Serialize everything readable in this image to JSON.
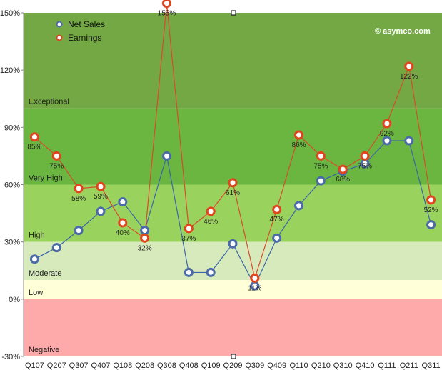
{
  "watermark": "© asymco.com",
  "chart_data": {
    "type": "line",
    "categories": [
      "Q107",
      "Q207",
      "Q307",
      "Q407",
      "Q108",
      "Q208",
      "Q308",
      "Q408",
      "Q109",
      "Q209",
      "Q309",
      "Q409",
      "Q110",
      "Q210",
      "Q310",
      "Q410",
      "Q111",
      "Q211",
      "Q311"
    ],
    "ylim": [
      -30,
      150
    ],
    "yticks": [
      -30,
      0,
      30,
      60,
      90,
      120,
      150
    ],
    "ytick_labels": [
      "-30%",
      "0%",
      "30%",
      "60%",
      "90%",
      "120%",
      "150%"
    ],
    "bands": [
      {
        "label": "Exceptional",
        "from": 100,
        "to": 150,
        "color": "#74a845"
      },
      {
        "label": "Very High",
        "from": 60,
        "to": 100,
        "color": "#6ab640"
      },
      {
        "label": "High",
        "from": 30,
        "to": 60,
        "color": "#9ad25e"
      },
      {
        "label": "Moderate",
        "from": 10,
        "to": 30,
        "color": "#d6eabc"
      },
      {
        "label": "Low",
        "from": 0,
        "to": 10,
        "color": "#ffffd8"
      },
      {
        "label": "Negative",
        "from": -30,
        "to": 0,
        "color": "#ffaaaa"
      }
    ],
    "series": [
      {
        "name": "Net Sales",
        "color": "#4a6aa8",
        "line_color": "#3b65a8",
        "values": [
          21,
          27,
          36,
          46,
          51,
          36,
          75,
          14,
          14,
          29,
          7,
          32,
          49,
          62,
          67,
          71,
          83,
          83,
          39
        ],
        "data_labels": [
          "",
          "",
          "",
          "",
          "",
          "",
          "",
          "",
          "",
          "",
          "",
          "",
          "",
          "",
          "",
          "",
          "",
          "",
          ""
        ]
      },
      {
        "name": "Earnings",
        "color": "#e0461e",
        "line_color": "#d94a2b",
        "values": [
          85,
          75,
          58,
          59,
          40,
          32,
          155,
          37,
          46,
          61,
          11,
          47,
          86,
          75,
          68,
          75,
          92,
          122,
          52
        ],
        "data_labels": [
          "85%",
          "75%",
          "58%",
          "59%",
          "40%",
          "32%",
          "155%",
          "37%",
          "46%",
          "61%",
          "11%",
          "47%",
          "86%",
          "75%",
          "68%",
          "75%",
          "92%",
          "122%",
          "52%"
        ]
      }
    ],
    "legend_position": "top-left",
    "grid": false
  }
}
